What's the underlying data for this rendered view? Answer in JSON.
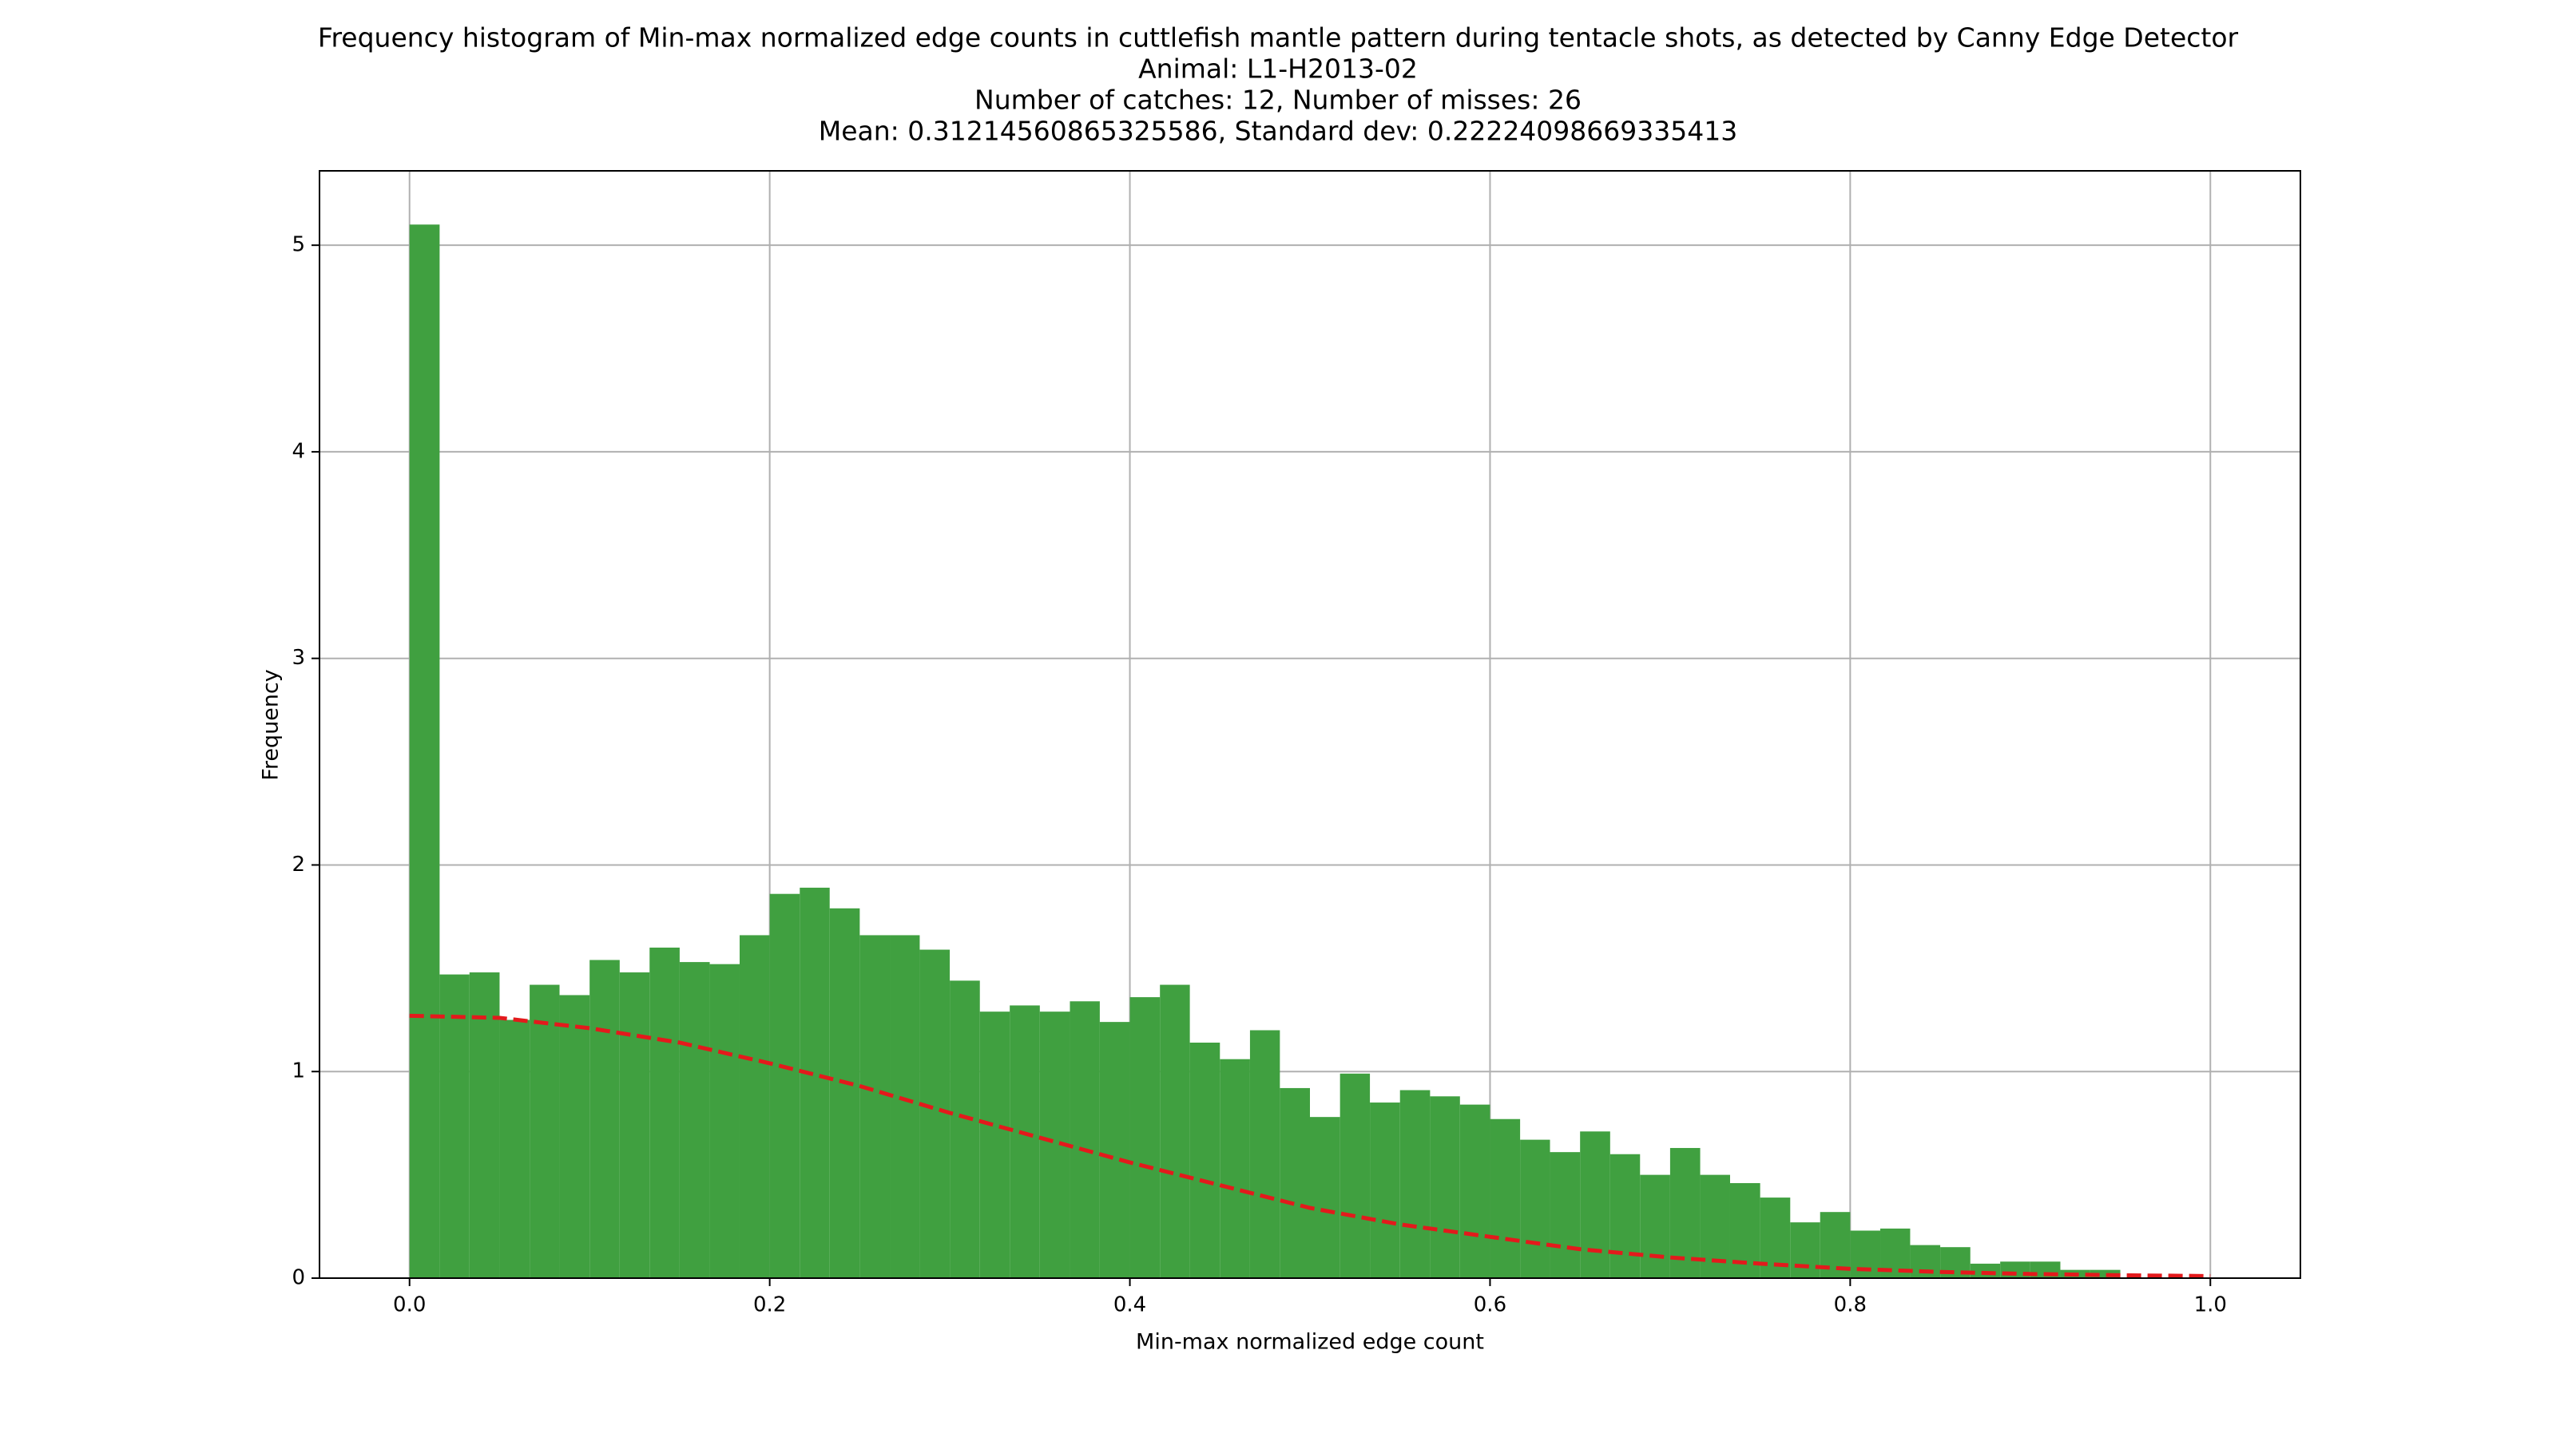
{
  "chart_data": {
    "type": "histogram",
    "title": "Frequency histogram of Min-max normalized edge counts in cuttlefish mantle pattern during tentacle shots, as detected by Canny Edge Detector",
    "subtitle_lines": [
      "Animal: L1-H2013-02",
      "Number of catches: 12, Number of misses: 26",
      "Mean: 0.31214560865325586, Standard dev: 0.22224098669335413"
    ],
    "x_label": "Min-max normalized edge count",
    "y_label": "Frequency",
    "color": "#40a040",
    "bins": [
      0,
      0.0167,
      0.0333,
      0.05,
      0.0667,
      0.0833,
      0.1,
      0.1167,
      0.1333,
      0.15,
      0.1667,
      0.1833,
      0.2,
      0.2167,
      0.2333,
      0.25,
      0.2667,
      0.2833,
      0.3,
      0.3167,
      0.3333,
      0.35,
      0.3667,
      0.3833,
      0.4,
      0.4167,
      0.4333,
      0.45,
      0.4667,
      0.4833,
      0.5,
      0.5167,
      0.5333,
      0.55,
      0.5667,
      0.5833,
      0.6,
      0.6167,
      0.6333,
      0.65,
      0.6667,
      0.6833,
      0.7,
      0.7167,
      0.7333,
      0.75,
      0.7667,
      0.7833,
      0.8,
      0.8167,
      0.8333,
      0.85,
      0.8667,
      0.8833,
      0.9,
      0.9167,
      0.9333,
      0.95,
      0.9667,
      0.9833,
      1
    ],
    "values": [
      5.1,
      1.47,
      1.48,
      1.25,
      1.42,
      1.37,
      1.54,
      1.48,
      1.6,
      1.53,
      1.52,
      1.66,
      1.86,
      1.89,
      1.79,
      1.66,
      1.66,
      1.59,
      1.44,
      1.29,
      1.32,
      1.29,
      1.34,
      1.24,
      1.36,
      1.42,
      1.14,
      1.06,
      1.2,
      0.92,
      0.78,
      0.99,
      0.85,
      0.91,
      0.88,
      0.84,
      0.77,
      0.67,
      0.61,
      0.71,
      0.6,
      0.5,
      0.63,
      0.5,
      0.46,
      0.39,
      0.27,
      0.32,
      0.23,
      0.24,
      0.16,
      0.15,
      0.07,
      0.08,
      0.08,
      0.04,
      0.04,
      0,
      0,
      0
    ],
    "curve": {
      "color": "#e31a1c",
      "x": [
        0,
        0.05,
        0.1,
        0.15,
        0.2,
        0.25,
        0.3,
        0.35,
        0.4,
        0.45,
        0.5,
        0.55,
        0.6,
        0.65,
        0.7,
        0.75,
        0.8,
        0.85,
        0.9,
        0.95,
        1
      ],
      "values": [
        1.27,
        1.26,
        1.21,
        1.14,
        1.04,
        0.93,
        0.8,
        0.68,
        0.56,
        0.45,
        0.34,
        0.26,
        0.2,
        0.14,
        0.1,
        0.07,
        0.045,
        0.03,
        0.02,
        0.014,
        0.01
      ]
    },
    "xlim": [
      -0.05,
      1.05
    ],
    "ylim": [
      0,
      5.36
    ],
    "xticks": [
      {
        "value": 0,
        "label": "0.0"
      },
      0.2,
      0.4,
      0.6,
      0.8,
      {
        "value": 1,
        "label": "1.0"
      }
    ],
    "yticks": [
      0,
      1,
      2,
      3,
      4,
      5
    ],
    "grid": true
  }
}
